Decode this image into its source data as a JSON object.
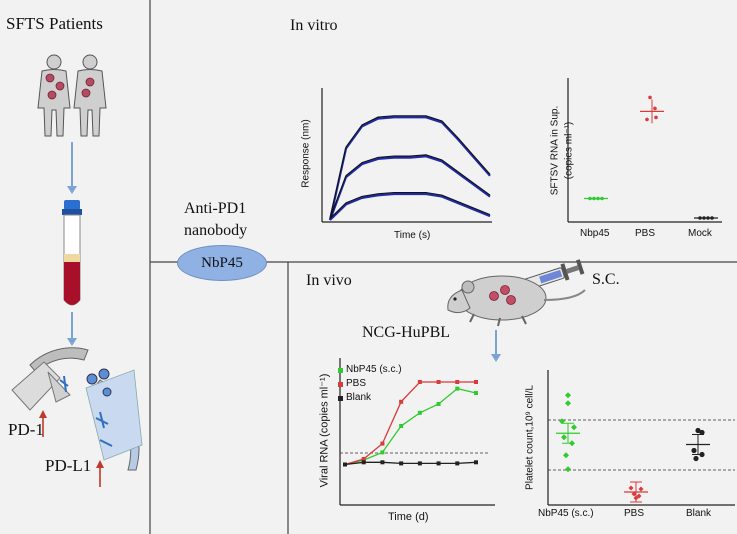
{
  "left_panel": {
    "title": "SFTS Patients",
    "pd1_label": "PD-1",
    "pdl1_label": "PD-L1"
  },
  "center": {
    "antibody_line1": "Anti-PD1",
    "antibody_line2": "nanobody",
    "badge": "NbP45"
  },
  "in_vitro": {
    "title": "In vitro",
    "binding_chart": {
      "xlabel": "Time (s)",
      "ylabel": "Response (nm)"
    },
    "rna_chart": {
      "ylabel_line1": "SFTSV RNA in Sup.",
      "ylabel_line2": "(copies ml⁻¹)",
      "categories": [
        "Nbp45",
        "PBS",
        "Mock"
      ]
    }
  },
  "in_vivo": {
    "title": "In vivo",
    "model": "NCG-HuPBL",
    "route": "S.C."
  },
  "chart_data": [
    {
      "type": "line",
      "xlabel": "Time (s)",
      "ylabel": "Response (nm)",
      "series": [
        {
          "values": [
            0,
            0.55,
            0.72,
            0.78,
            0.79,
            0.79,
            0.79,
            0.75,
            0.62,
            0.48,
            0.34
          ]
        },
        {
          "values": [
            0,
            0.33,
            0.43,
            0.47,
            0.48,
            0.48,
            0.49,
            0.45,
            0.36,
            0.27,
            0.18
          ]
        },
        {
          "values": [
            0,
            0.12,
            0.17,
            0.19,
            0.2,
            0.2,
            0.2,
            0.18,
            0.13,
            0.08,
            0.03
          ]
        }
      ]
    },
    {
      "type": "scatter",
      "ylabel": "SFTSV RNA in Sup. (copies ml⁻¹)",
      "categories": [
        "Nbp45",
        "PBS",
        "Mock"
      ],
      "values": [
        0.15,
        0.82,
        0.0
      ]
    },
    {
      "type": "line",
      "xlabel": "Time (d)",
      "ylabel": "Viral RNA (copies ml⁻¹)",
      "series": [
        {
          "name": "NbP45 (s.c.)",
          "color": "#2ecc2e",
          "values": [
            0.05,
            0.09,
            0.16,
            0.4,
            0.52,
            0.6,
            0.74,
            0.7
          ]
        },
        {
          "name": "PBS",
          "color": "#d93a3a",
          "values": [
            0.05,
            0.1,
            0.24,
            0.62,
            0.8,
            0.8,
            0.8,
            0.8
          ]
        },
        {
          "name": "Blank",
          "color": "#222222",
          "values": [
            0.05,
            0.07,
            0.07,
            0.06,
            0.06,
            0.06,
            0.06,
            0.07
          ]
        }
      ]
    },
    {
      "type": "scatter",
      "ylabel": "Platelet count,10⁹ cell/L",
      "categories": [
        "NbP45 (s.c.)",
        "PBS",
        "Blank"
      ],
      "values": [
        0.55,
        0.08,
        0.46
      ]
    }
  ]
}
